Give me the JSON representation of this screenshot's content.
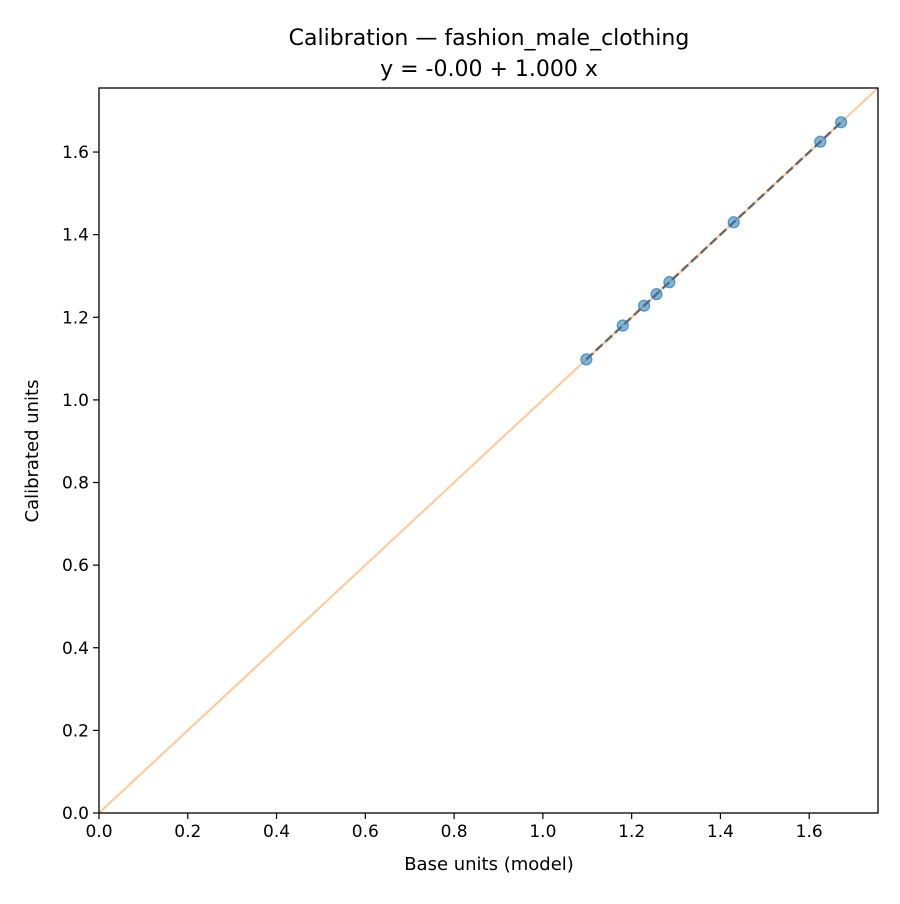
{
  "chart_data": {
    "type": "scatter",
    "title": "Calibration — fashion_male_clothing",
    "subtitle": "y = -0.00 + 1.000 x",
    "xlabel": "Base units (model)",
    "ylabel": "Calibrated units",
    "xlim": [
      0.0,
      1.755
    ],
    "ylim": [
      0.0,
      1.755
    ],
    "xticks": [
      "0.0",
      "0.2",
      "0.4",
      "0.6",
      "0.8",
      "1.0",
      "1.2",
      "1.4",
      "1.6"
    ],
    "yticks": [
      "0.0",
      "0.2",
      "0.4",
      "0.6",
      "0.8",
      "1.0",
      "1.2",
      "1.4",
      "1.6"
    ],
    "grid": false,
    "points": {
      "x": [
        1.098,
        1.18,
        1.228,
        1.256,
        1.285,
        1.43,
        1.625,
        1.672
      ],
      "y": [
        1.098,
        1.18,
        1.228,
        1.256,
        1.285,
        1.43,
        1.625,
        1.672
      ]
    },
    "identity_line": {
      "x": [
        0.0,
        1.755
      ],
      "y": [
        0.0,
        1.755
      ]
    },
    "fit_line": {
      "intercept": 0.0,
      "slope": 1.0,
      "x_range": [
        1.098,
        1.672
      ]
    },
    "colors": {
      "points": "#1f77b4",
      "identity": "#ff7f0e",
      "fit": "#555555",
      "axes": "#000000"
    }
  }
}
